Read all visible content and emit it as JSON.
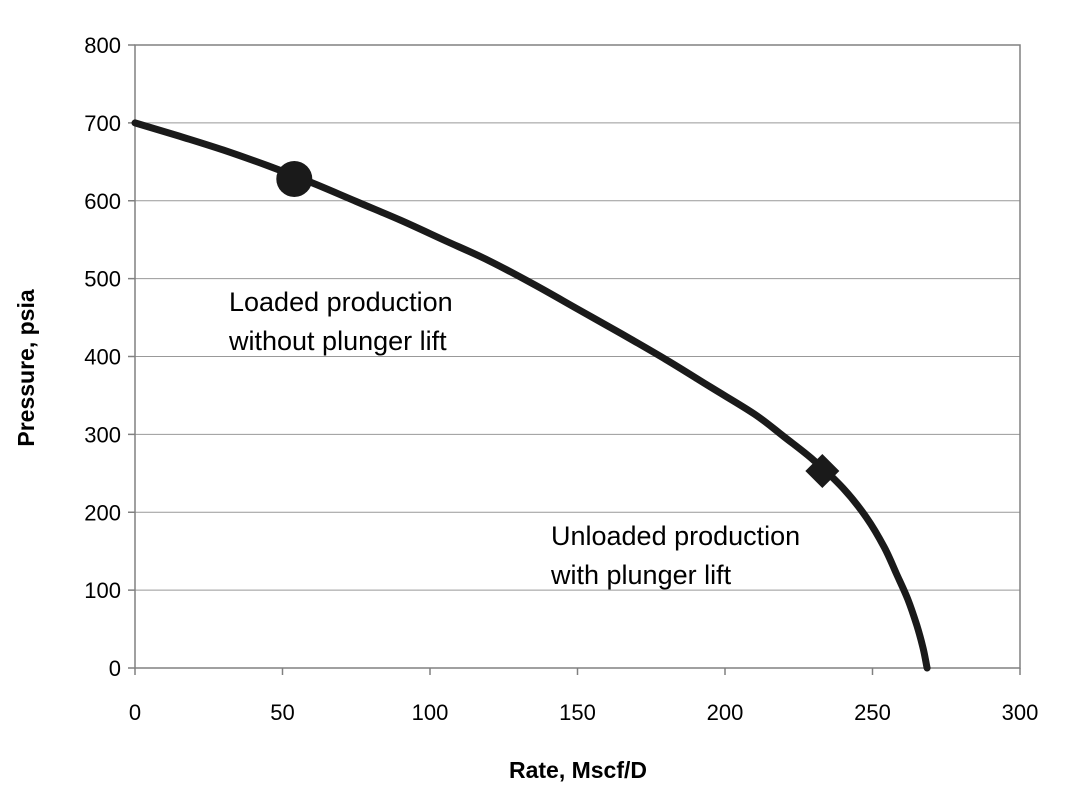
{
  "chart_data": {
    "type": "line",
    "title": "",
    "xlabel": "Rate, Mscf/D",
    "ylabel": "Pressure, psia",
    "xlim": [
      0,
      300
    ],
    "ylim": [
      0,
      800
    ],
    "x_ticks": [
      0,
      50,
      100,
      150,
      200,
      250,
      300
    ],
    "y_ticks": [
      0,
      100,
      200,
      300,
      400,
      500,
      600,
      700,
      800
    ],
    "grid": "horizontal",
    "series": [
      {
        "x": [
          0,
          15,
          30,
          45,
          60,
          75,
          90,
          105,
          120,
          135,
          150,
          165,
          180,
          195,
          210,
          220,
          230,
          240,
          248,
          254,
          258,
          262,
          265,
          267,
          268,
          268.5
        ],
        "y": [
          700,
          683,
          665,
          645,
          623,
          599,
          575,
          549,
          523,
          493,
          461,
          429,
          396,
          361,
          326,
          297,
          267,
          231,
          193,
          155,
          122,
          88,
          55,
          28,
          10,
          0
        ]
      }
    ],
    "markers": [
      {
        "shape": "circle",
        "x": 54,
        "y": 628
      },
      {
        "shape": "diamond",
        "x": 233,
        "y": 253
      }
    ],
    "annotations": [
      {
        "lines": [
          "Loaded production",
          "without plunger lift"
        ]
      },
      {
        "lines": [
          "Unloaded production",
          "with plunger lift"
        ]
      }
    ]
  }
}
